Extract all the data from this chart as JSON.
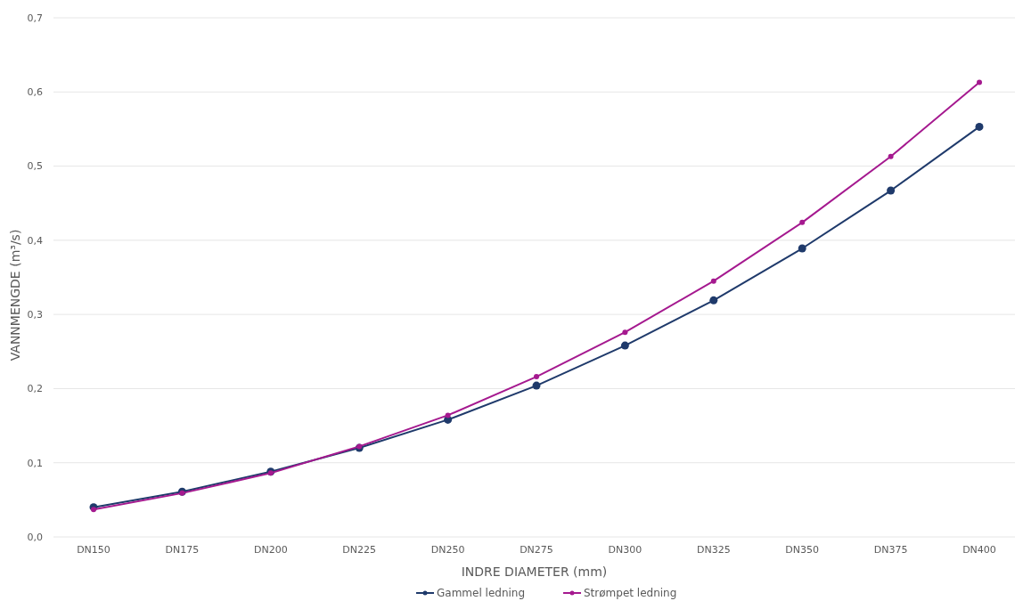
{
  "chart_data": {
    "type": "line",
    "xlabel": "INDRE DIAMETER (mm)",
    "ylabel": "VANNMENGDE (m³/s)",
    "categories": [
      "DN150",
      "DN175",
      "DN200",
      "DN225",
      "DN250",
      "DN275",
      "DN300",
      "DN325",
      "DN350",
      "DN375",
      "DN400"
    ],
    "series": [
      {
        "name": "Gammel ledning",
        "color": "#1f3a6b",
        "values": [
          0.04,
          0.061,
          0.088,
          0.12,
          0.158,
          0.204,
          0.258,
          0.319,
          0.389,
          0.467,
          0.553
        ]
      },
      {
        "name": "Strømpet ledning",
        "color": "#a5198f",
        "values": [
          0.037,
          0.059,
          0.086,
          0.122,
          0.164,
          0.216,
          0.276,
          0.345,
          0.424,
          0.513,
          0.613
        ]
      }
    ],
    "ylim": [
      0,
      0.7
    ],
    "yticks": [
      {
        "value": 0,
        "label": "0,0"
      },
      {
        "value": 0.1,
        "label": "0,1"
      },
      {
        "value": 0.2,
        "label": "0,2"
      },
      {
        "value": 0.3,
        "label": "0,3"
      },
      {
        "value": 0.4,
        "label": "0,4"
      },
      {
        "value": 0.5,
        "label": "0,5"
      },
      {
        "value": 0.6,
        "label": "0,6"
      },
      {
        "value": 0.7,
        "label": "0,7"
      }
    ],
    "grid": "y",
    "legend": "bottom",
    "marker": "circle",
    "line_style": "solid"
  }
}
